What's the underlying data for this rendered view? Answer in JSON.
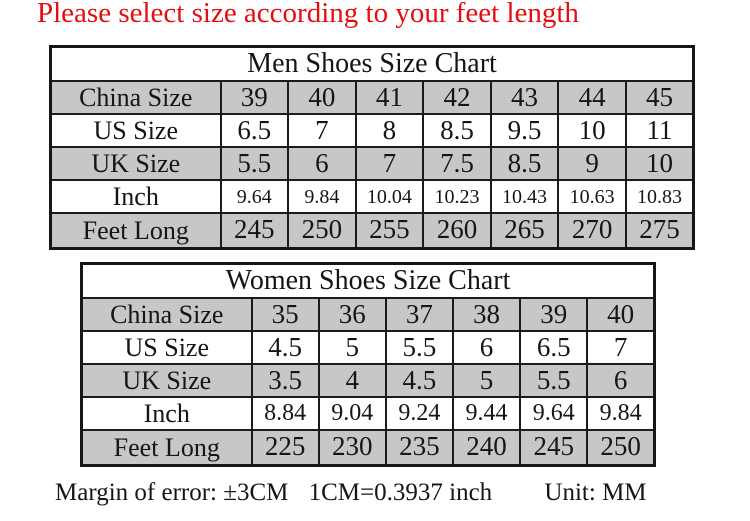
{
  "page": {
    "title": "Please select size according to your feet length",
    "footer": {
      "margin_note": "Margin of error: ±3CM",
      "conversion_note": "1CM=0.3937 inch",
      "unit_note": "Unit: MM"
    }
  },
  "colors": {
    "title_red": "#e30e0e",
    "shaded_row_gray": "#c7c7c7",
    "border_black": "#1b1b1b",
    "background": "#ffffff"
  },
  "chart_data": [
    {
      "type": "table",
      "title": "Men Shoes Size Chart",
      "layout": {
        "shaded_rows": [
          0,
          2,
          4
        ],
        "label_column_first": true
      },
      "rows": [
        {
          "label": "China Size",
          "values": [
            "39",
            "40",
            "41",
            "42",
            "43",
            "44",
            "45"
          ]
        },
        {
          "label": "US Size",
          "values": [
            "6.5",
            "7",
            "8",
            "8.5",
            "9.5",
            "10",
            "11"
          ]
        },
        {
          "label": "UK Size",
          "values": [
            "5.5",
            "6",
            "7",
            "7.5",
            "8.5",
            "9",
            "10"
          ]
        },
        {
          "label": "Inch",
          "values": [
            "9.64",
            "9.84",
            "10.04",
            "10.23",
            "10.43",
            "10.63",
            "10.83"
          ]
        },
        {
          "label": "Feet Long",
          "values": [
            "245",
            "250",
            "255",
            "260",
            "265",
            "270",
            "275"
          ]
        }
      ]
    },
    {
      "type": "table",
      "title": "Women Shoes Size Chart",
      "layout": {
        "shaded_rows": [
          0,
          2,
          4
        ],
        "label_column_first": true
      },
      "rows": [
        {
          "label": "China Size",
          "values": [
            "35",
            "36",
            "37",
            "38",
            "39",
            "40"
          ]
        },
        {
          "label": "US Size",
          "values": [
            "4.5",
            "5",
            "5.5",
            "6",
            "6.5",
            "7"
          ]
        },
        {
          "label": "UK Size",
          "values": [
            "3.5",
            "4",
            "4.5",
            "5",
            "5.5",
            "6"
          ]
        },
        {
          "label": "Inch",
          "values": [
            "8.84",
            "9.04",
            "9.24",
            "9.44",
            "9.64",
            "9.84"
          ]
        },
        {
          "label": "Feet Long",
          "values": [
            "225",
            "230",
            "235",
            "240",
            "245",
            "250"
          ]
        }
      ]
    }
  ]
}
